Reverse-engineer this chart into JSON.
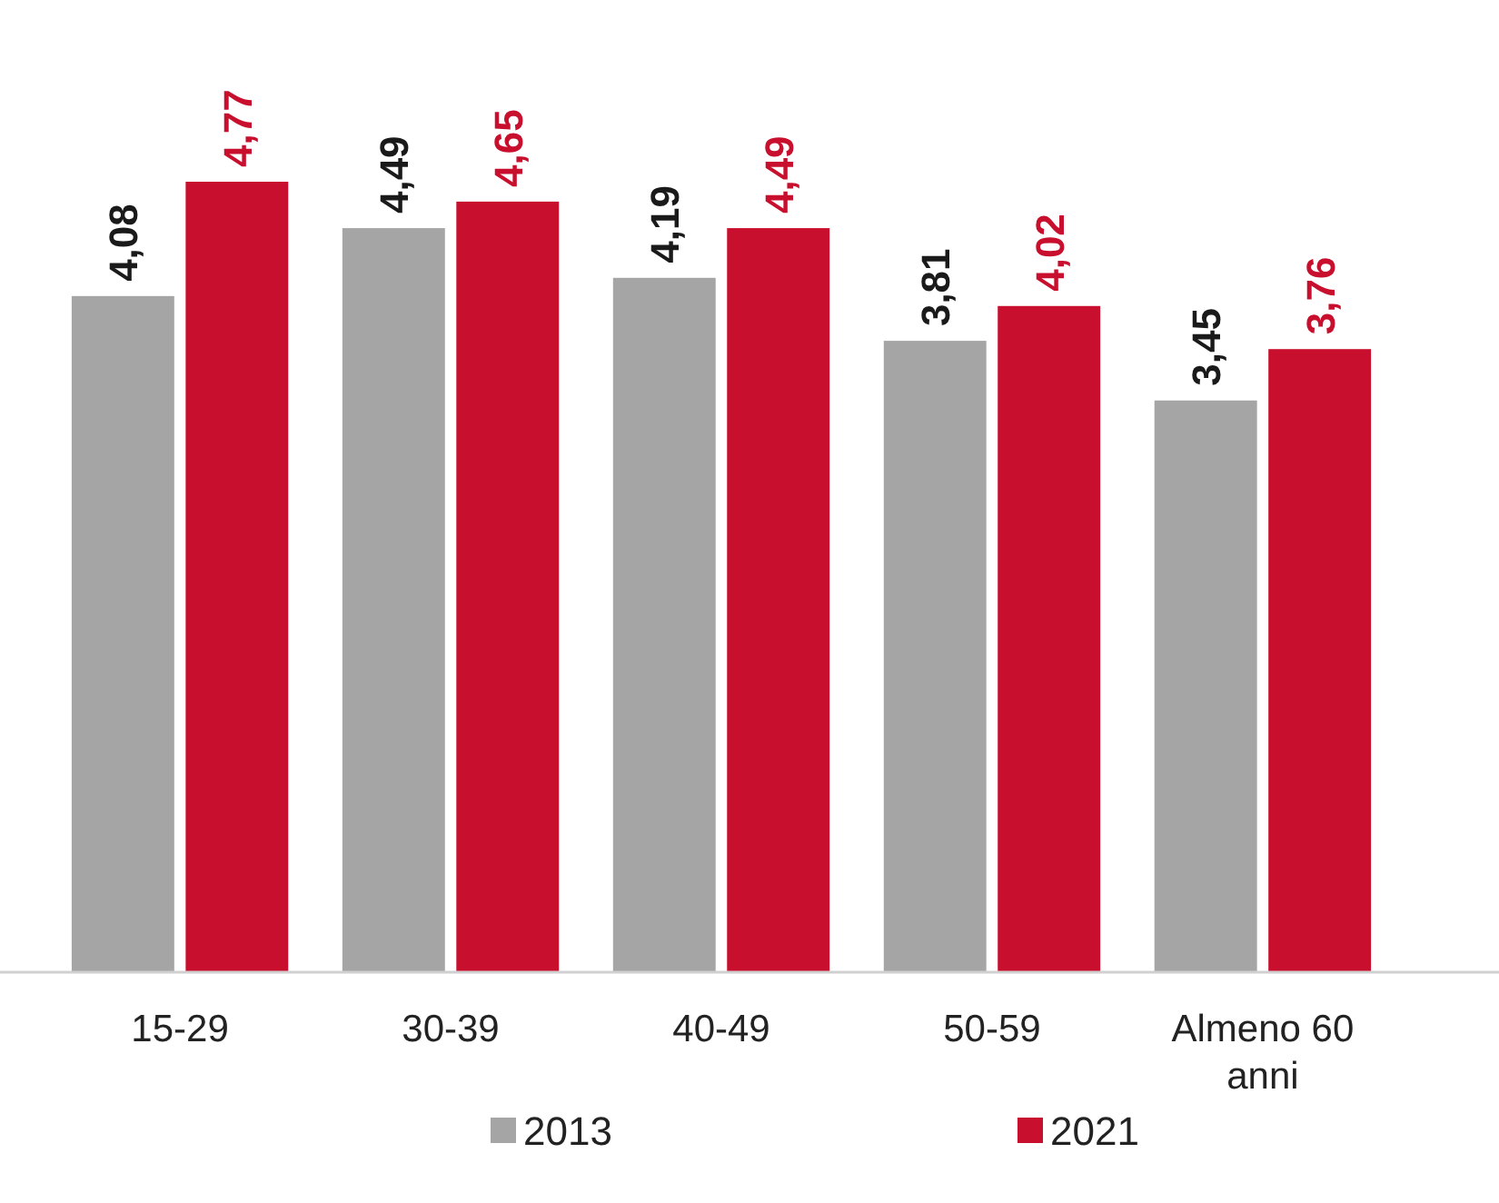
{
  "chart_data": {
    "type": "bar",
    "categories": [
      "15-29",
      "30-39",
      "40-49",
      "50-59",
      "Almeno 60 anni"
    ],
    "series": [
      {
        "name": "2013",
        "color": "#a5a5a5",
        "values": [
          4.08,
          4.49,
          4.19,
          3.81,
          3.45
        ],
        "value_labels": [
          "4,08",
          "4,49",
          "4,19",
          "3,81",
          "3,45"
        ]
      },
      {
        "name": "2021",
        "color": "#c8102e",
        "values": [
          4.77,
          4.65,
          4.49,
          4.02,
          3.76
        ],
        "value_labels": [
          "4,77",
          "4,65",
          "4,49",
          "4,02",
          "3,76"
        ]
      }
    ],
    "tick_labels": "x",
    "legend": "bottom"
  }
}
